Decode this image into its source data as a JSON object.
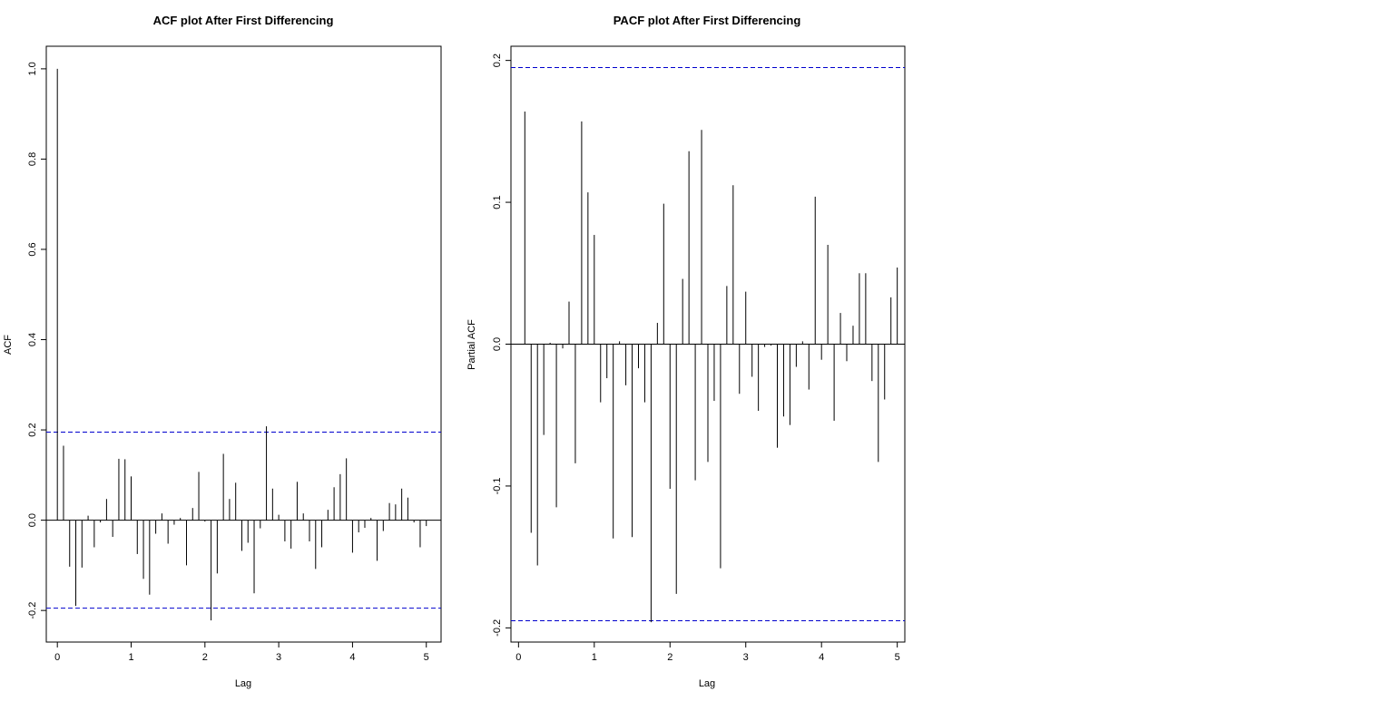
{
  "chart_data": [
    {
      "type": "bar",
      "title": "ACF plot After First Differencing",
      "xlabel": "Lag",
      "ylabel": "ACF",
      "xlim": [
        -0.15,
        5.2
      ],
      "ylim": [
        -0.27,
        1.05
      ],
      "xticks": [
        "0",
        "1",
        "2",
        "3",
        "4",
        "5"
      ],
      "yticks": [
        "-0.2",
        "0.0",
        "0.2",
        "0.4",
        "0.6",
        "0.8",
        "1.0"
      ],
      "confidence_bounds": [
        0.195,
        -0.195
      ],
      "grid": false,
      "colors": {
        "bars": "#000000",
        "bounds": "#0000cd"
      },
      "x": [
        0,
        0.0833,
        0.1667,
        0.25,
        0.3333,
        0.4167,
        0.5,
        0.5833,
        0.6667,
        0.75,
        0.8333,
        0.9167,
        1,
        1.0833,
        1.1667,
        1.25,
        1.3333,
        1.4167,
        1.5,
        1.5833,
        1.6667,
        1.75,
        1.8333,
        1.9167,
        2,
        2.0833,
        2.1667,
        2.25,
        2.3333,
        2.4167,
        2.5,
        2.5833,
        2.6667,
        2.75,
        2.8333,
        2.9167,
        3,
        3.0833,
        3.1667,
        3.25,
        3.3333,
        3.4167,
        3.5,
        3.5833,
        3.6667,
        3.75,
        3.8333,
        3.9167,
        4,
        4.0833,
        4.1667,
        4.25,
        4.3333,
        4.4167,
        4.5,
        4.5833,
        4.6667,
        4.75,
        4.8333,
        4.9167,
        5
      ],
      "values": [
        1.0,
        0.165,
        -0.103,
        -0.19,
        -0.105,
        0.01,
        -0.06,
        -0.005,
        0.047,
        -0.037,
        0.136,
        0.135,
        0.097,
        -0.075,
        -0.13,
        -0.165,
        -0.03,
        0.015,
        -0.052,
        -0.01,
        0.005,
        -0.1,
        0.027,
        0.107,
        -0.003,
        -0.222,
        -0.118,
        0.147,
        0.047,
        0.083,
        -0.068,
        -0.05,
        -0.162,
        -0.018,
        0.208,
        0.07,
        0.012,
        -0.047,
        -0.063,
        0.085,
        0.015,
        -0.047,
        -0.108,
        -0.06,
        0.023,
        0.073,
        0.102,
        0.137,
        -0.072,
        -0.027,
        -0.017,
        0.005,
        -0.09,
        -0.024,
        0.038,
        0.035,
        0.07,
        0.05,
        -0.005,
        -0.06,
        -0.013
      ]
    },
    {
      "type": "bar",
      "title": "PACF plot After First Differencing",
      "xlabel": "Lag",
      "ylabel": "Partial ACF",
      "xlim": [
        -0.1,
        5.1
      ],
      "ylim": [
        -0.21,
        0.21
      ],
      "xticks": [
        "0",
        "1",
        "2",
        "3",
        "4",
        "5"
      ],
      "yticks": [
        "-0.2",
        "-0.1",
        "0.0",
        "0.1",
        "0.2"
      ],
      "confidence_bounds": [
        0.195,
        -0.195
      ],
      "grid": false,
      "colors": {
        "bars": "#000000",
        "bounds": "#0000cd"
      },
      "x": [
        0.0833,
        0.1667,
        0.25,
        0.3333,
        0.4167,
        0.5,
        0.5833,
        0.6667,
        0.75,
        0.8333,
        0.9167,
        1,
        1.0833,
        1.1667,
        1.25,
        1.3333,
        1.4167,
        1.5,
        1.5833,
        1.6667,
        1.75,
        1.8333,
        1.9167,
        2,
        2.0833,
        2.1667,
        2.25,
        2.3333,
        2.4167,
        2.5,
        2.5833,
        2.6667,
        2.75,
        2.8333,
        2.9167,
        3,
        3.0833,
        3.1667,
        3.25,
        3.3333,
        3.4167,
        3.5,
        3.5833,
        3.6667,
        3.75,
        3.8333,
        3.9167,
        4,
        4.0833,
        4.1667,
        4.25,
        4.3333,
        4.4167,
        4.5,
        4.5833,
        4.6667,
        4.75,
        4.8333,
        4.9167,
        5
      ],
      "values": [
        0.164,
        -0.133,
        -0.156,
        -0.064,
        0.001,
        -0.115,
        -0.003,
        0.03,
        -0.084,
        0.157,
        0.107,
        0.077,
        -0.041,
        -0.024,
        -0.137,
        0.002,
        -0.029,
        -0.136,
        -0.017,
        -0.041,
        -0.196,
        0.015,
        0.099,
        -0.102,
        -0.176,
        0.046,
        0.136,
        -0.096,
        0.151,
        -0.083,
        -0.04,
        -0.158,
        0.041,
        0.112,
        -0.035,
        0.037,
        -0.023,
        -0.047,
        -0.002,
        -0.001,
        -0.073,
        -0.051,
        -0.057,
        -0.016,
        0.002,
        -0.032,
        0.104,
        -0.011,
        0.07,
        -0.054,
        0.022,
        -0.012,
        0.013,
        0.05,
        0.05,
        -0.026,
        -0.083,
        -0.039,
        0.033,
        0.054
      ]
    }
  ]
}
